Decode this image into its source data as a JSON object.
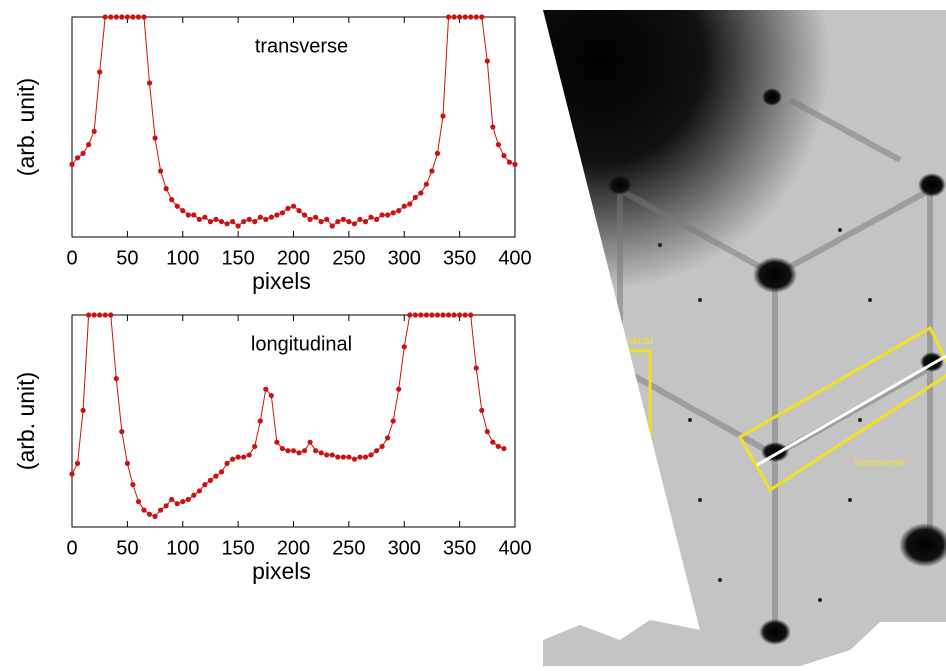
{
  "chart_data": [
    {
      "type": "line",
      "annotation": "transverse",
      "xlabel": "pixels",
      "ylabel": "(arb. unit)",
      "color": "#cc1111",
      "xlim": [
        0,
        400
      ],
      "xticks": [
        0,
        50,
        100,
        150,
        200,
        250,
        300,
        350,
        400
      ],
      "ylim": [
        0,
        1
      ],
      "x": [
        0,
        5,
        10,
        15,
        20,
        25,
        30,
        35,
        40,
        45,
        50,
        55,
        60,
        65,
        70,
        75,
        80,
        85,
        90,
        95,
        100,
        105,
        110,
        115,
        120,
        125,
        130,
        135,
        140,
        145,
        150,
        155,
        160,
        165,
        170,
        175,
        180,
        185,
        190,
        195,
        200,
        205,
        210,
        215,
        220,
        225,
        230,
        235,
        240,
        245,
        250,
        255,
        260,
        265,
        270,
        275,
        280,
        285,
        290,
        295,
        300,
        305,
        310,
        315,
        320,
        325,
        330,
        335,
        340,
        345,
        350,
        355,
        360,
        365,
        370,
        375,
        380,
        385,
        390,
        395,
        400
      ],
      "series": [
        {
          "color": "#cc1111",
          "values": [
            0.33,
            0.36,
            0.38,
            0.42,
            0.48,
            0.75,
            1,
            1,
            1,
            1,
            1,
            1,
            1,
            1,
            0.7,
            0.45,
            0.3,
            0.22,
            0.17,
            0.14,
            0.12,
            0.1,
            0.1,
            0.08,
            0.09,
            0.07,
            0.08,
            0.07,
            0.06,
            0.07,
            0.05,
            0.07,
            0.08,
            0.07,
            0.09,
            0.08,
            0.09,
            0.1,
            0.11,
            0.13,
            0.14,
            0.12,
            0.1,
            0.08,
            0.09,
            0.07,
            0.08,
            0.05,
            0.07,
            0.08,
            0.07,
            0.06,
            0.08,
            0.07,
            0.09,
            0.08,
            0.1,
            0.1,
            0.11,
            0.12,
            0.14,
            0.15,
            0.18,
            0.2,
            0.24,
            0.3,
            0.38,
            0.55,
            1,
            1,
            1,
            1,
            1,
            1,
            1,
            0.8,
            0.5,
            0.42,
            0.37,
            0.34,
            0.33
          ]
        }
      ]
    },
    {
      "type": "line",
      "annotation": "longitudinal",
      "xlabel": "pixels",
      "ylabel": "(arb. unit)",
      "color": "#cc1111",
      "xlim": [
        0,
        400
      ],
      "xticks": [
        0,
        50,
        100,
        150,
        200,
        250,
        300,
        350,
        400
      ],
      "ylim": [
        0,
        1
      ],
      "x": [
        0,
        5,
        10,
        15,
        20,
        25,
        30,
        35,
        40,
        45,
        50,
        55,
        60,
        65,
        70,
        75,
        80,
        85,
        90,
        95,
        100,
        105,
        110,
        115,
        120,
        125,
        130,
        135,
        140,
        145,
        150,
        155,
        160,
        165,
        170,
        175,
        180,
        185,
        190,
        195,
        200,
        205,
        210,
        215,
        220,
        225,
        230,
        235,
        240,
        245,
        250,
        255,
        260,
        265,
        270,
        275,
        280,
        285,
        290,
        295,
        300,
        305,
        310,
        315,
        320,
        325,
        330,
        335,
        340,
        345,
        350,
        355,
        360,
        365,
        370,
        375,
        380,
        385,
        390
      ],
      "series": [
        {
          "color": "#cc1111",
          "values": [
            0.25,
            0.3,
            0.55,
            1,
            1,
            1,
            1,
            1,
            0.7,
            0.45,
            0.3,
            0.2,
            0.12,
            0.08,
            0.06,
            0.05,
            0.08,
            0.1,
            0.13,
            0.11,
            0.12,
            0.13,
            0.15,
            0.17,
            0.2,
            0.22,
            0.24,
            0.26,
            0.3,
            0.32,
            0.33,
            0.33,
            0.34,
            0.38,
            0.5,
            0.65,
            0.62,
            0.4,
            0.37,
            0.36,
            0.36,
            0.35,
            0.36,
            0.4,
            0.36,
            0.35,
            0.34,
            0.34,
            0.33,
            0.33,
            0.33,
            0.32,
            0.33,
            0.33,
            0.34,
            0.36,
            0.38,
            0.42,
            0.5,
            0.65,
            0.85,
            1,
            1,
            1,
            1,
            1,
            1,
            1,
            1,
            1,
            1,
            1,
            1,
            0.75,
            0.55,
            0.45,
            0.4,
            0.38,
            0.37
          ]
        }
      ]
    }
  ],
  "image": {
    "labels": [
      "longitudinal",
      "transverse"
    ]
  }
}
